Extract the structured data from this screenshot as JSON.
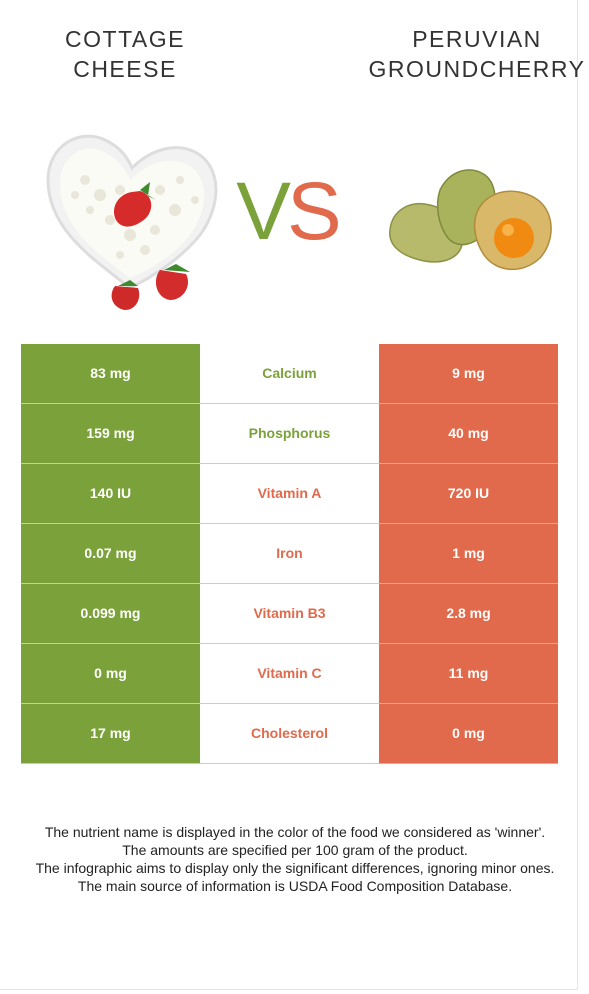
{
  "left_food": {
    "title_lines": [
      "COTTAGE",
      "CHEESE"
    ],
    "color": "#7ba23a"
  },
  "right_food": {
    "title_lines": [
      "PERUVIAN",
      "GROUNDCHERRY"
    ],
    "color": "#e06a4b"
  },
  "vs": {
    "v": "V",
    "s": "S"
  },
  "rows": [
    {
      "left": "83 mg",
      "nutrient": "Calcium",
      "right": "9 mg",
      "winner": "left"
    },
    {
      "left": "159 mg",
      "nutrient": "Phosphorus",
      "right": "40 mg",
      "winner": "left"
    },
    {
      "left": "140 IU",
      "nutrient": "Vitamin A",
      "right": "720 IU",
      "winner": "right"
    },
    {
      "left": "0.07 mg",
      "nutrient": "Iron",
      "right": "1 mg",
      "winner": "right"
    },
    {
      "left": "0.099 mg",
      "nutrient": "Vitamin B3",
      "right": "2.8 mg",
      "winner": "right"
    },
    {
      "left": "0 mg",
      "nutrient": "Vitamin C",
      "right": "11 mg",
      "winner": "right"
    },
    {
      "left": "17 mg",
      "nutrient": "Cholesterol",
      "right": "0 mg",
      "winner": "right"
    }
  ],
  "notes": [
    "The nutrient name is displayed in the color of the food we considered as 'winner'.",
    "The amounts are specified per 100 gram of the product.",
    "The infographic aims to display only the significant differences, ignoring minor ones.",
    "The main source of information is USDA Food Composition Database."
  ]
}
